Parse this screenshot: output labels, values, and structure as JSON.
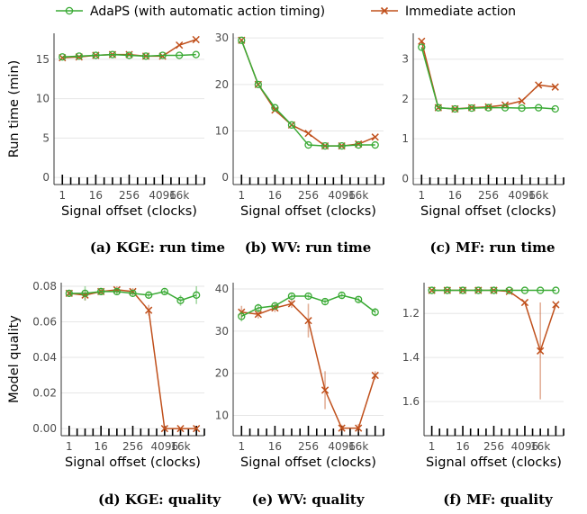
{
  "colors": {
    "adaps": "#3aaa35",
    "immediate": "#c0501c",
    "grid": "#e6e6e6"
  },
  "legend": {
    "items": [
      {
        "label": "AdaPS (with automatic action timing)",
        "marker": "circle",
        "color": "#3aaa35"
      },
      {
        "label": "Immediate action",
        "marker": "x",
        "color": "#c0501c"
      }
    ]
  },
  "chart_data": [
    {
      "id": "a",
      "type": "line",
      "caption": "(a) KGE: run time",
      "xlabel": "Signal offset (clocks)",
      "ylabel": "Run time (min)",
      "x": [
        1,
        4,
        16,
        64,
        256,
        1024,
        4096,
        16384,
        65536
      ],
      "x_scale": "log2",
      "xlim": [
        0.5,
        131072
      ],
      "xticks": [
        "1",
        "16",
        "256",
        "4096",
        "16k"
      ],
      "ylim": [
        -0.9,
        18.3
      ],
      "yticks": [
        0,
        5,
        10,
        15
      ],
      "reverse_y": false,
      "series": [
        {
          "name": "AdaPS (with automatic action timing)",
          "marker": "circle",
          "values": [
            15.3,
            15.4,
            15.5,
            15.6,
            15.5,
            15.4,
            15.5,
            15.5,
            15.6
          ],
          "errors": []
        },
        {
          "name": "Immediate action",
          "marker": "x",
          "values": [
            15.2,
            15.3,
            15.5,
            15.6,
            15.6,
            15.4,
            15.4,
            16.8,
            17.5
          ],
          "errors": []
        }
      ]
    },
    {
      "id": "b",
      "type": "line",
      "caption": "(b) WV: run time",
      "xlabel": "Signal offset (clocks)",
      "ylabel": "",
      "x": [
        1,
        4,
        16,
        64,
        256,
        1024,
        4096,
        16384,
        65536
      ],
      "x_scale": "log2",
      "xlim": [
        0.5,
        131072
      ],
      "xticks": [
        "1",
        "16",
        "256",
        "4096",
        "16k"
      ],
      "ylim": [
        -1.5,
        31
      ],
      "yticks": [
        0,
        10,
        20,
        30
      ],
      "reverse_y": false,
      "series": [
        {
          "name": "AdaPS (with automatic action timing)",
          "marker": "circle",
          "values": [
            29.5,
            20.0,
            15.0,
            11.3,
            7.0,
            6.8,
            6.8,
            7.0,
            7.0
          ],
          "errors": []
        },
        {
          "name": "Immediate action",
          "marker": "x",
          "values": [
            29.5,
            20.0,
            14.5,
            11.3,
            9.5,
            6.8,
            6.8,
            7.2,
            8.7
          ],
          "errors": []
        }
      ]
    },
    {
      "id": "c",
      "type": "line",
      "caption": "(c) MF: run time",
      "xlabel": "Signal offset (clocks)",
      "ylabel": "",
      "x": [
        1,
        4,
        16,
        64,
        256,
        1024,
        4096,
        16384,
        65536
      ],
      "x_scale": "log2",
      "xlim": [
        0.5,
        131072
      ],
      "xticks": [
        "1",
        "16",
        "256",
        "4096",
        "16k"
      ],
      "ylim": [
        -0.15,
        3.65
      ],
      "yticks": [
        0,
        1,
        2,
        3
      ],
      "reverse_y": false,
      "series": [
        {
          "name": "AdaPS (with automatic action timing)",
          "marker": "circle",
          "values": [
            3.3,
            1.78,
            1.75,
            1.77,
            1.78,
            1.78,
            1.77,
            1.78,
            1.75
          ],
          "errors": []
        },
        {
          "name": "Immediate action",
          "marker": "x",
          "values": [
            3.45,
            1.78,
            1.75,
            1.78,
            1.8,
            1.85,
            1.95,
            2.35,
            2.3
          ],
          "errors": []
        }
      ]
    },
    {
      "id": "d",
      "type": "line",
      "caption": "(d) KGE: quality",
      "xlabel": "Signal offset (clocks)",
      "ylabel": "Model quality",
      "x": [
        1,
        4,
        16,
        64,
        256,
        1024,
        4096,
        16384,
        65536
      ],
      "x_scale": "log2",
      "xlim": [
        0.5,
        131072
      ],
      "xticks": [
        "1",
        "16",
        "256",
        "4096",
        "16k"
      ],
      "ylim": [
        -0.004,
        0.082
      ],
      "yticks": [
        "0.00",
        "0.02",
        "0.04",
        "0.06",
        "0.08"
      ],
      "reverse_y": false,
      "series": [
        {
          "name": "AdaPS (with automatic action timing)",
          "marker": "circle",
          "values": [
            0.076,
            0.076,
            0.077,
            0.077,
            0.076,
            0.075,
            0.077,
            0.072,
            0.075
          ],
          "errors": [
            0.002,
            0.004,
            0.002,
            0.002,
            0.002,
            0.002,
            0.002,
            0.003,
            0.005
          ]
        },
        {
          "name": "Immediate action",
          "marker": "x",
          "values": [
            0.076,
            0.075,
            0.077,
            0.078,
            0.077,
            0.0665,
            0.0,
            0.0,
            0.0
          ],
          "errors": [
            0.002,
            0.003,
            0.002,
            0.002,
            0.002,
            0.003,
            0,
            0,
            0
          ]
        }
      ]
    },
    {
      "id": "e",
      "type": "line",
      "caption": "(e) WV: quality",
      "xlabel": "Signal offset (clocks)",
      "ylabel": "",
      "x": [
        1,
        4,
        16,
        64,
        256,
        1024,
        4096,
        16384,
        65536
      ],
      "x_scale": "log2",
      "xlim": [
        0.5,
        131072
      ],
      "xticks": [
        "1",
        "16",
        "256",
        "4096",
        "16k"
      ],
      "ylim": [
        5.2,
        41.5
      ],
      "yticks": [
        10,
        20,
        30,
        40
      ],
      "reverse_y": false,
      "series": [
        {
          "name": "AdaPS (with automatic action timing)",
          "marker": "circle",
          "values": [
            33.5,
            35.5,
            36.0,
            38.3,
            38.3,
            37.0,
            38.5,
            37.5,
            34.5
          ],
          "errors": [
            1.2,
            1.0,
            0.8,
            0.8,
            0.8,
            0.8,
            0.8,
            0.8,
            1.0
          ]
        },
        {
          "name": "Immediate action",
          "marker": "x",
          "values": [
            34.5,
            34.0,
            35.5,
            36.5,
            32.5,
            16.0,
            7.0,
            7.0,
            19.5
          ],
          "errors": [
            1.5,
            1.0,
            1.0,
            1.0,
            4.0,
            4.5,
            0.8,
            1.0,
            1.0
          ]
        }
      ]
    },
    {
      "id": "f",
      "type": "line",
      "caption": "(f) MF: quality",
      "xlabel": "Signal offset (clocks)",
      "ylabel": "",
      "x": [
        1,
        4,
        16,
        64,
        256,
        1024,
        4096,
        16384,
        65536
      ],
      "x_scale": "log2",
      "xlim": [
        0.5,
        131072
      ],
      "xticks": [
        "1",
        "16",
        "256",
        "4096",
        "16k"
      ],
      "ylim": [
        1.755,
        1.06
      ],
      "yticks": [
        1.2,
        1.4,
        1.6
      ],
      "reverse_y": true,
      "series": [
        {
          "name": "AdaPS (with automatic action timing)",
          "marker": "circle",
          "values": [
            1.095,
            1.095,
            1.095,
            1.095,
            1.095,
            1.095,
            1.095,
            1.095,
            1.095
          ],
          "errors": []
        },
        {
          "name": "Immediate action",
          "marker": "x",
          "values": [
            1.095,
            1.095,
            1.095,
            1.095,
            1.095,
            1.1,
            1.15,
            1.37,
            1.16
          ],
          "errors": [
            0,
            0,
            0,
            0,
            0,
            0,
            0,
            0.22,
            0
          ]
        }
      ]
    }
  ]
}
